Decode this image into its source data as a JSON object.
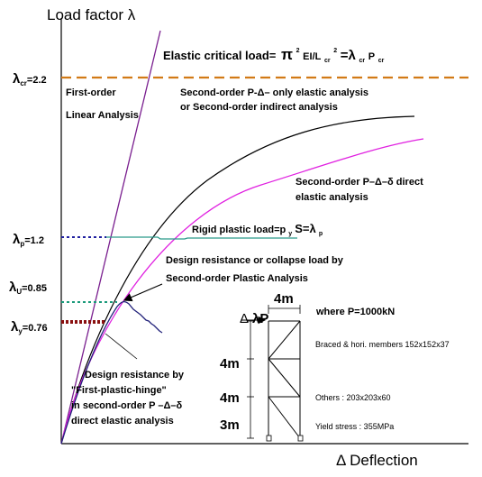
{
  "axes": {
    "y_label": "Load factor λ",
    "x_label": "Δ Deflection"
  },
  "levels": {
    "cr": {
      "sym": "λ",
      "sub": "cr",
      "value": "=2.2"
    },
    "p": {
      "sym": "λ",
      "sub": "p",
      "value": "=1.2"
    },
    "u": {
      "sym": "λ",
      "sub": "U",
      "value": "=0.85"
    },
    "y": {
      "sym": "λ",
      "sub": "y",
      "value": "=0.76"
    }
  },
  "annotations": {
    "elastic_critical": {
      "label": "Elastic critical load=",
      "pi": "π",
      "sq1": "2",
      "ei": "EI/L",
      "cr1": "cr",
      "sq2": "2",
      "eq": "=λ",
      "cr2": "cr",
      "p": "P",
      "cr3": "cr"
    },
    "first_order_1": "First-order",
    "first_order_2": "Linear Analysis",
    "second_indirect_1": "Second-order P-Δ– only elastic analysis",
    "second_indirect_2": "or Second-order indirect analysis",
    "second_direct_1": "Second-order P–Δ–δ direct",
    "second_direct_2": "elastic analysis",
    "rigid_plastic": {
      "label": "Rigid plastic load=p",
      "y": "y",
      "s": "S=λ",
      "p": "p"
    },
    "design_res_1": "Design resistance or collapse load by",
    "design_res_2": "Second-order Plastic Analysis",
    "design_hinge_1": "Design resistance by",
    "design_hinge_2": "\"First-plastic-hinge\"",
    "design_hinge_3": "in second-order P –Δ–δ",
    "design_hinge_4": "direct elastic analysis"
  },
  "frame": {
    "width_dim": "4m",
    "load_symbol": "Δ",
    "load_label": "λP",
    "where": "where P=1000kN",
    "braced": "Braced & hori. members 152x152x37",
    "h1": "4m",
    "h2": "4m",
    "h3": "3m",
    "others": "Others : 203x203x60",
    "yield": "Yield stress : 355MPa"
  },
  "colors": {
    "critical": "#d27a16",
    "first_order": "#7a1f8f",
    "indirect": "#000000",
    "direct": "#e020e0",
    "rigid": "#2a9a8a",
    "collapse": "#22227a",
    "lp_dash": "#2020a0",
    "lu_dash": "#1a9a7a",
    "ly_dash": "#8a1010"
  }
}
